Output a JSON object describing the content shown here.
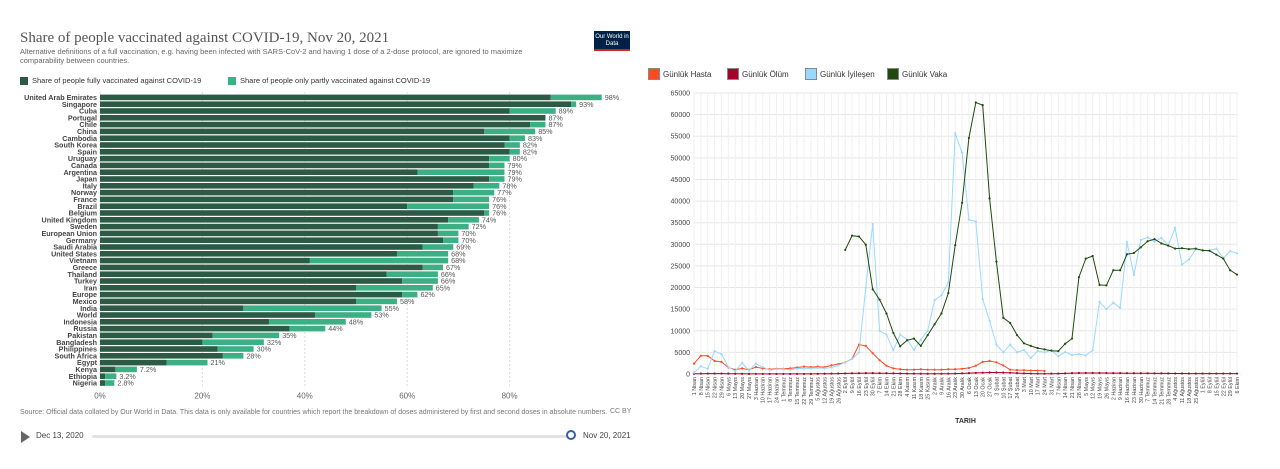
{
  "left_chart": {
    "title": "Share of people vaccinated against COVID-19, Nov 20, 2021",
    "subtitle": "Alternative definitions of a full vaccination, e.g. having been infected with SARS-CoV-2 and having 1 dose of a 2-dose protocol, are ignored to maximize comparability between countries.",
    "logo_text": "Our World in Data",
    "source": "Source: Official data collated by Our World in Data. This data is only available for countries which report the breakdown of doses administered by first and second doses in absolute numbers.",
    "license": "CC BY",
    "timeline": {
      "start": "Dec 13, 2020",
      "end": "Nov 20, 2021",
      "progress": 1.0
    },
    "colors": {
      "full": "#2d5a45",
      "partial": "#3daf85",
      "label": "#444444"
    }
  },
  "chart_data": [
    {
      "type": "bar",
      "orientation": "horizontal",
      "stacked": true,
      "categories": [
        "United Arab Emirates",
        "Singapore",
        "Cuba",
        "Portugal",
        "Chile",
        "China",
        "Cambodia",
        "South Korea",
        "Spain",
        "Uruguay",
        "Canada",
        "Argentina",
        "Japan",
        "Italy",
        "Norway",
        "France",
        "Brazil",
        "Belgium",
        "United Kingdom",
        "Sweden",
        "European Union",
        "Germany",
        "Saudi Arabia",
        "United States",
        "Vietnam",
        "Greece",
        "Thailand",
        "Turkey",
        "Iran",
        "Europe",
        "Mexico",
        "India",
        "World",
        "Indonesia",
        "Russia",
        "Pakistan",
        "Bangladesh",
        "Philippines",
        "South Africa",
        "Egypt",
        "Kenya",
        "Ethiopia",
        "Nigeria"
      ],
      "series": [
        {
          "name": "Share of people fully vaccinated against COVID-19",
          "values": [
            88,
            92,
            80,
            87,
            84,
            75,
            80,
            79,
            80,
            76,
            76,
            62,
            76,
            73,
            69,
            69,
            60,
            75,
            68,
            66,
            66,
            67,
            63,
            58,
            41,
            63,
            56,
            59,
            50,
            59,
            50,
            28,
            42,
            33,
            37,
            22,
            20,
            23,
            24,
            13,
            3,
            1,
            1
          ]
        },
        {
          "name": "Share of people only partly vaccinated against COVID-19",
          "values": [
            10,
            1,
            9,
            0,
            3,
            10,
            3,
            3,
            2,
            4,
            3,
            17,
            3,
            5,
            8,
            7,
            16,
            1,
            6,
            6,
            4,
            3,
            6,
            10,
            27,
            4,
            10,
            7,
            15,
            3,
            8,
            27,
            11,
            15,
            7,
            13,
            12,
            7,
            4,
            8,
            4.2,
            2.2,
            1.8
          ]
        }
      ],
      "totals": [
        "98%",
        "93%",
        "89%",
        "87%",
        "87%",
        "85%",
        "83%",
        "82%",
        "82%",
        "80%",
        "79%",
        "79%",
        "79%",
        "78%",
        "77%",
        "76%",
        "76%",
        "76%",
        "74%",
        "72%",
        "70%",
        "70%",
        "69%",
        "68%",
        "68%",
        "67%",
        "66%",
        "66%",
        "65%",
        "62%",
        "58%",
        "55%",
        "53%",
        "48%",
        "44%",
        "35%",
        "32%",
        "30%",
        "28%",
        "21%",
        "7.2%",
        "3.2%",
        "2.8%"
      ],
      "x_ticks": [
        "0%",
        "20%",
        "40%",
        "60%",
        "80%"
      ],
      "xlim": [
        0,
        100
      ]
    },
    {
      "type": "line",
      "series": [
        {
          "name": "Günlük Hasta",
          "color": "#ff4b1f",
          "values": [
            2400,
            4200,
            4200,
            3000,
            2800,
            1500,
            1000,
            1300,
            1000,
            1600,
            1300,
            1100,
            1200,
            1200,
            1300,
            1500,
            1700,
            1600,
            1700,
            1600,
            2000,
            2300,
            2700,
            3500,
            6800,
            6500,
            4800,
            3200,
            1900,
            1300,
            1100,
            1000,
            1000,
            1100,
            1000,
            1000,
            1000,
            1100,
            1100,
            1200,
            1400,
            1900,
            2800,
            3000,
            2700,
            2000,
            1000,
            900,
            900,
            800,
            800,
            700,
            null,
            null,
            null,
            null,
            null,
            null,
            null,
            null,
            null,
            null,
            null,
            null,
            null,
            null,
            null,
            null,
            null,
            null,
            null,
            null,
            null,
            null,
            null,
            null,
            null,
            null,
            null,
            null
          ]
        },
        {
          "name": "Günlük Ölüm",
          "color": "#a8002a",
          "values": [
            50,
            80,
            100,
            100,
            100,
            80,
            60,
            40,
            30,
            20,
            20,
            20,
            20,
            20,
            20,
            20,
            20,
            30,
            40,
            60,
            80,
            100,
            130,
            160,
            190,
            200,
            200,
            190,
            170,
            150,
            120,
            100,
            80,
            70,
            60,
            60,
            70,
            80,
            100,
            150,
            200,
            250,
            300,
            350,
            350,
            320,
            280,
            200,
            150,
            100,
            80,
            70,
            80,
            100,
            150,
            200,
            230,
            240,
            240,
            230,
            220,
            210,
            200,
            190,
            180,
            170,
            160,
            150,
            140,
            130,
            120,
            110,
            100,
            100,
            100,
            100,
            100,
            100,
            100,
            100
          ]
        },
        {
          "name": "Günlük İyileşen",
          "color": "#99d9ff",
          "values": [
            300,
            1800,
            1200,
            5300,
            4600,
            1600,
            700,
            2600,
            800,
            2400,
            1600,
            900,
            1100,
            1100,
            1000,
            1200,
            1300,
            1300,
            1400,
            1300,
            1500,
            2000,
            2700,
            3500,
            5000,
            20000,
            34700,
            10000,
            9100,
            5500,
            9100,
            8000,
            5600,
            7900,
            10000,
            17100,
            18200,
            21100,
            55700,
            51200,
            35700,
            35300,
            17300,
            12300,
            6800,
            5000,
            6800,
            5000,
            5600,
            3700,
            5300,
            5000,
            5500,
            4100,
            5100,
            4400,
            4600,
            4300,
            5500,
            16700,
            15000,
            16500,
            15300,
            30500,
            22900,
            31000,
            31600,
            30600,
            31500,
            29800,
            33800,
            25300,
            26500,
            28800,
            28600,
            28600,
            29000,
            26800,
            28400,
            27900
          ]
        },
        {
          "name": "Günlük Vaka",
          "color": "#1f4a0f",
          "values": [
            null,
            null,
            null,
            null,
            null,
            null,
            null,
            null,
            null,
            null,
            null,
            null,
            null,
            null,
            null,
            null,
            null,
            null,
            null,
            null,
            null,
            null,
            28700,
            32000,
            31800,
            29900,
            19600,
            17200,
            14000,
            9500,
            6400,
            7800,
            8200,
            6500,
            9000,
            11500,
            14000,
            18700,
            29800,
            39600,
            54600,
            62800,
            62200,
            40600,
            26000,
            13000,
            11800,
            9000,
            7100,
            6500,
            6000,
            5700,
            5400,
            5300,
            7000,
            8200,
            22400,
            26700,
            27300,
            20600,
            20500,
            24000,
            24000,
            27700,
            28000,
            29300,
            30700,
            31200,
            30200,
            29700,
            29000,
            29100,
            28900,
            29000,
            28600,
            28500,
            27600,
            26700,
            24000,
            23000
          ]
        }
      ],
      "x": [
        "1 Nisan",
        "8 Nisan",
        "15 Nisan",
        "22 Nisan",
        "29 Nisan",
        "6 Mayıs",
        "13 Mayıs",
        "20 Mayıs",
        "27 Mayıs",
        "3 Haziran",
        "10 Haziran",
        "17 Haziran",
        "24 Haziran",
        "1 Temmuz",
        "8 Temmuz",
        "15 Temmuz",
        "22 Temmuz",
        "29 Temmuz",
        "5 Ağustos",
        "12 Ağustos",
        "19 Ağustos",
        "26 Ağustos",
        "2 Eylül",
        "9 Eylül",
        "16 Eylül",
        "23 Eylül",
        "30 Eylül",
        "7 Ekim",
        "14 Ekim",
        "21 Ekim",
        "28 Ekim",
        "4 Kasım",
        "11 Kasım",
        "18 Kasım",
        "25 Kasım",
        "2 Aralık",
        "9 Aralık",
        "16 Aralık",
        "23 Aralık",
        "30 Aralık",
        "6 Ocak",
        "13 Ocak",
        "20 Ocak",
        "27 Ocak",
        "3 Şubat",
        "10 Şubat",
        "17 Şubat",
        "24 Şubat",
        "3 Mart",
        "10 Mart",
        "17 Mart",
        "24 Mart",
        "31 Mart",
        "7 Nisan",
        "14 Nisan",
        "21 Nisan",
        "28 Nisan",
        "5 Mayıs",
        "12 Mayıs",
        "19 Mayıs",
        "26 Mayıs",
        "2 Haziran",
        "9 Haziran",
        "16 Haziran",
        "23 Haziran",
        "30 Haziran",
        "7 Temmuz",
        "14 Temmuz",
        "21 Temmuz",
        "28 Temmuz",
        "4 Ağustos",
        "11 Ağustos",
        "18 Ağustos",
        "25 Ağustos",
        "1 Eylül",
        "8 Eylül",
        "15 Eylül",
        "22 Eylül",
        "29 Eylül",
        "6 Ekim"
      ],
      "xlabel": "TARIH",
      "ylabel": "",
      "ylim": [
        0,
        65000
      ],
      "y_ticks": [
        0,
        5000,
        10000,
        15000,
        20000,
        25000,
        30000,
        35000,
        40000,
        45000,
        50000,
        55000,
        60000,
        65000
      ],
      "grid": true,
      "legend": "top-left"
    }
  ]
}
